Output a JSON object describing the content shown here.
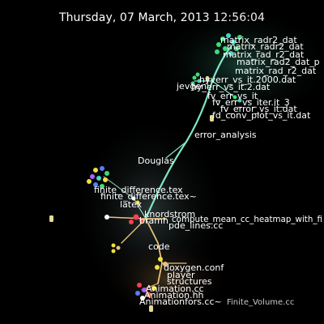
{
  "header": {
    "datetime": "Thursday, 07 March, 2013 12:56:04"
  },
  "colors": {
    "background": "#000000",
    "label": "#ffffff",
    "label_dim": "#c8c8c8",
    "branch": "#7fe8c4",
    "branch_lower": "#e8c27a",
    "file_green": "#3fdc7a",
    "file_teal": "#40d8c8",
    "file_blue": "#5a7dff",
    "file_yellow": "#f0e040",
    "file_red": "#ff4050",
    "file_purple": "#b060ff",
    "user": "#e8d89a"
  },
  "labels": {
    "matrix_cluster": [
      "matrix_radr2_dat",
      "matrix_radr2_dat",
      "matrix_rad_r2_dat",
      "matrix_rad2_dat_p",
      "matrix_rad_r2_dat"
    ],
    "jevgeni": "jevgeni",
    "hy_err": "hyverr_vs_it.2000.dat",
    "hy_err2": "hy_err_vs_it.2.dat",
    "fv_cluster": [
      "fv_err_vs_it",
      "fv_err_vs_iter.it_3",
      "fv_error_vs_it.dat",
      "fd_conv_plot_vs_it.dat"
    ],
    "error_analysis": "error_analysis",
    "douglas": "Douglas",
    "finite_diff": "finite_difference.tex",
    "finite_diff2": "finite_difference.tex~",
    "latex": "latex",
    "knordstrom": "knordstrom",
    "bramh": "bramh",
    "heatmap": "compute_mean_cc_heatmap_with_fi",
    "pde_lines": "pde_lines.cc",
    "code": "code",
    "doxygen": "doxygen.conf",
    "player": "player",
    "structures": "structures",
    "animation1": "Animation.cc",
    "animation2": "Animation.hh",
    "animation_cc": "Animationfors.cc~",
    "finite_volume": "Finite_Volume.cc"
  }
}
